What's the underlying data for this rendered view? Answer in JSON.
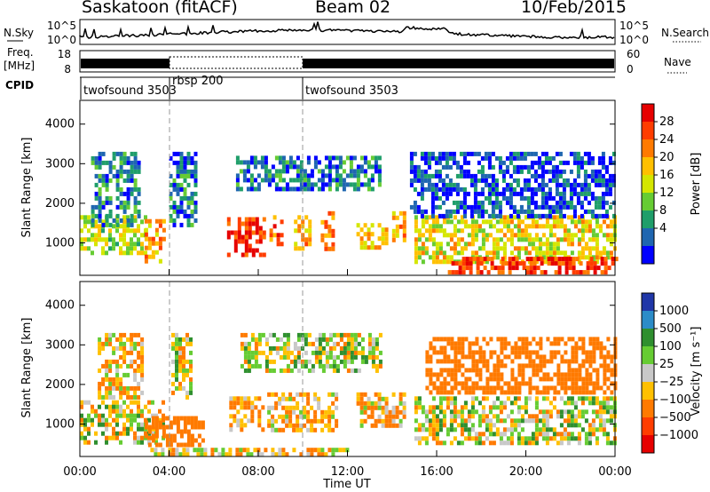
{
  "header": {
    "station": "Saskatoon (fitACF)",
    "beam": "Beam 02",
    "date": "10/Feb/2015"
  },
  "strips": {
    "nsky_label": "N.Sky",
    "nsearch_label": "N.Search",
    "freq_label_1": "Freq.",
    "freq_label_2": "[MHz]",
    "nave_label": "Nave",
    "cpid_label": "CPID",
    "noise_ticks_left": [
      "10^5",
      "10^0"
    ],
    "noise_ticks_right": [
      "10^5",
      "10^0"
    ],
    "freq_ticks": [
      "18",
      "8"
    ],
    "nave_ticks": [
      "60",
      "0"
    ],
    "cpid_segments": [
      {
        "name": "twofsound 3503",
        "start": 0,
        "end": 4
      },
      {
        "name": "rbsp 200",
        "start": 4,
        "end": 10
      },
      {
        "name": "twofsound 3503",
        "start": 10,
        "end": 24
      }
    ]
  },
  "axes": {
    "xlabel": "Time UT",
    "x_ticks": [
      "00:00",
      "04:00",
      "08:00",
      "12:00",
      "16:00",
      "20:00",
      "00:00"
    ],
    "ylabel": "Slant Range [km]",
    "y_ticks": [
      "4000",
      "3000",
      "2000",
      "1000"
    ],
    "xlim_hours": [
      0,
      24
    ],
    "ylim_km": [
      180,
      4600
    ]
  },
  "colorbars": {
    "power": {
      "label": "Power [dB]",
      "ticks": [
        "28",
        "24",
        "20",
        "16",
        "12",
        "8",
        "4"
      ],
      "colors": [
        "#e60000",
        "#ff3d00",
        "#ff7a00",
        "#ffc000",
        "#d4e600",
        "#66cc33",
        "#1f9e6a",
        "#1f66b0",
        "#0000ff"
      ]
    },
    "velocity": {
      "label": "Velocity [m s⁻¹]",
      "ticks": [
        "1000",
        "500",
        "100",
        "25",
        "−25",
        "−100",
        "−500",
        "−1000"
      ],
      "colors": [
        "#2037a8",
        "#2c8cc8",
        "#2f8f2f",
        "#66cc33",
        "#c8c8c8",
        "#ffc000",
        "#ff7a00",
        "#ff3d00",
        "#e60000"
      ]
    }
  },
  "chart_data": [
    {
      "type": "heatmap",
      "title": "Power",
      "xlabel": "Time UT",
      "ylabel": "Slant Range [km]",
      "xlim": [
        0,
        24
      ],
      "ylim": [
        180,
        4600
      ],
      "series": [
        {
          "t0": 0.0,
          "t1": 2.9,
          "r0": 700,
          "r1": 1700,
          "dB": 16
        },
        {
          "t0": 2.9,
          "t1": 3.7,
          "r0": 550,
          "r1": 1600,
          "dB": 22
        },
        {
          "t0": 0.5,
          "t1": 2.6,
          "r0": 1500,
          "r1": 3300,
          "dB": 9
        },
        {
          "t0": 4.0,
          "t1": 5.2,
          "r0": 1400,
          "r1": 3300,
          "dB": 8
        },
        {
          "t0": 6.6,
          "t1": 8.2,
          "r0": 750,
          "r1": 1650,
          "dB": 28
        },
        {
          "t0": 8.5,
          "t1": 9.0,
          "r0": 1000,
          "r1": 1700,
          "dB": 24
        },
        {
          "t0": 9.6,
          "t1": 10.3,
          "r0": 900,
          "r1": 1700,
          "dB": 22
        },
        {
          "t0": 10.8,
          "t1": 11.3,
          "r0": 900,
          "r1": 1800,
          "dB": 24
        },
        {
          "t0": 12.4,
          "t1": 13.7,
          "r0": 900,
          "r1": 1500,
          "dB": 20
        },
        {
          "t0": 14.0,
          "t1": 14.6,
          "r0": 1100,
          "r1": 1800,
          "dB": 22
        },
        {
          "t0": 15.0,
          "t1": 24.0,
          "r0": 500,
          "r1": 1700,
          "dB": 18
        },
        {
          "t0": 16.5,
          "t1": 24.0,
          "r0": 250,
          "r1": 650,
          "dB": 27
        },
        {
          "t0": 7.0,
          "t1": 13.5,
          "r0": 2400,
          "r1": 3200,
          "dB": 8
        },
        {
          "t0": 14.8,
          "t1": 24.0,
          "r0": 1700,
          "r1": 3300,
          "dB": 6
        }
      ]
    },
    {
      "type": "heatmap",
      "title": "Velocity",
      "xlabel": "Time UT",
      "ylabel": "Slant Range [km]",
      "xlim": [
        0,
        24
      ],
      "ylim": [
        180,
        4600
      ],
      "series": [
        {
          "t0": 0.0,
          "t1": 3.8,
          "r0": 500,
          "r1": 1600,
          "v": 0
        },
        {
          "t0": 2.9,
          "t1": 5.5,
          "r0": 500,
          "r1": 1200,
          "v": -300
        },
        {
          "t0": 0.8,
          "t1": 2.8,
          "r0": 1700,
          "r1": 3300,
          "v": -80
        },
        {
          "t0": 4.1,
          "t1": 5.0,
          "r0": 1700,
          "r1": 3300,
          "v": 0
        },
        {
          "t0": 6.7,
          "t1": 8.2,
          "r0": 900,
          "r1": 1700,
          "v": -120
        },
        {
          "t0": 8.4,
          "t1": 11.5,
          "r0": 900,
          "r1": 1800,
          "v": -90
        },
        {
          "t0": 7.2,
          "t1": 13.5,
          "r0": 2400,
          "r1": 3300,
          "v": 0
        },
        {
          "t0": 12.4,
          "t1": 14.6,
          "r0": 1000,
          "r1": 1800,
          "v": -100
        },
        {
          "t0": 15.0,
          "t1": 24.0,
          "r0": 500,
          "r1": 1700,
          "v": 0
        },
        {
          "t0": 15.5,
          "t1": 24.0,
          "r0": 1800,
          "r1": 3200,
          "v": -250
        },
        {
          "t0": 3.0,
          "t1": 12.0,
          "r0": 200,
          "r1": 400,
          "v": -50
        }
      ]
    }
  ]
}
